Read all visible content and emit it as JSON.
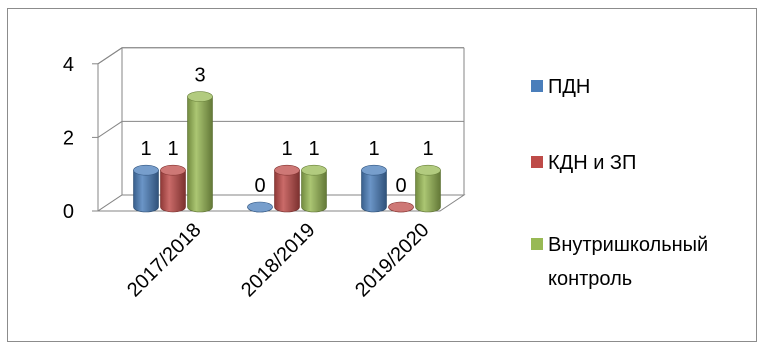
{
  "chart_data": {
    "type": "bar",
    "subtype": "3d-clustered-cylinder",
    "categories": [
      "2017/2018",
      "2018/2019",
      "2019/2020"
    ],
    "series": [
      {
        "name": "ПДН",
        "values": [
          1,
          0,
          1
        ],
        "color": "#4a7ebb"
      },
      {
        "name": "КДН и ЗП",
        "values": [
          1,
          1,
          0
        ],
        "color": "#be4b48"
      },
      {
        "name": "Внутришкольный контроль",
        "values": [
          3,
          1,
          1
        ],
        "color": "#98b954"
      }
    ],
    "legend_lines": [
      [
        "ПДН"
      ],
      [
        "КДН и ЗП"
      ],
      [
        "Внутришкольный",
        "контроль"
      ]
    ],
    "yticks": [
      "0",
      "2",
      "4"
    ],
    "ylim": [
      0,
      4
    ],
    "grid": true,
    "legend_position": "right"
  }
}
